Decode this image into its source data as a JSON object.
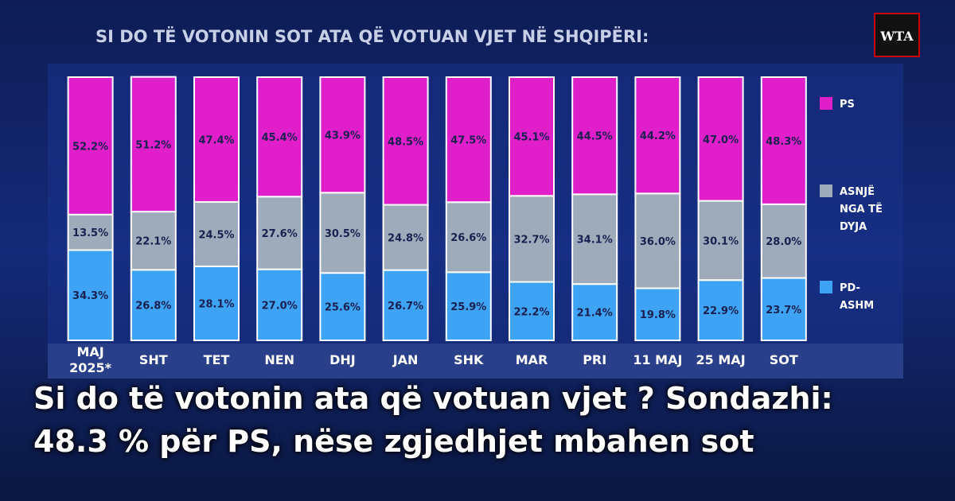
{
  "logo": "WTA",
  "headline": "Si do të votonin ata që votuan vjet ? Sondazhi: 48.3 % për PS, nëse zgjedhjet mbahen sot",
  "chart_data": {
    "type": "stacked-bar",
    "title": "SI DO TË VOTONIN SOT ATA QË VOTUAN VJET NË SHQIPËRI:",
    "categories": [
      "MAJ 2025*",
      "SHT",
      "TET",
      "NEN",
      "DHJ",
      "JAN",
      "SHK",
      "MAR",
      "PRI",
      "11 MAJ",
      "25 MAJ",
      "SOT"
    ],
    "ylim": [
      0,
      100
    ],
    "series": [
      {
        "name": "PD-ASHM",
        "color": "#3da3f2",
        "values": [
          34.3,
          26.8,
          28.1,
          27.0,
          25.6,
          26.7,
          25.9,
          22.2,
          21.4,
          19.8,
          22.9,
          23.7
        ],
        "value_labels": [
          "34.3%",
          "26.8%",
          "28.1%",
          "27.0%",
          "25.6%",
          "26.7%",
          "25.9%",
          "22.2%",
          "21.4%",
          "19.8%",
          "22.9%",
          "23.7%"
        ]
      },
      {
        "name": "ASNJË NGA TË DYJA",
        "color": "#9eabbb",
        "values": [
          13.5,
          22.1,
          24.5,
          27.6,
          30.5,
          24.8,
          26.6,
          32.7,
          34.1,
          36.0,
          30.1,
          28.0
        ],
        "value_labels": [
          "13.5%",
          "22.1%",
          "24.5%",
          "27.6%",
          "30.5%",
          "24.8%",
          "26.6%",
          "32.7%",
          "34.1%",
          "36.0%",
          "30.1%",
          "28.0%"
        ]
      },
      {
        "name": "PS",
        "color": "#e01fcb",
        "values": [
          52.2,
          51.2,
          47.4,
          45.4,
          43.9,
          48.5,
          47.5,
          45.1,
          44.5,
          44.2,
          47.0,
          48.3
        ],
        "value_labels": [
          "52.2%",
          "51.2%",
          "47.4%",
          "45.4%",
          "43.9%",
          "48.5%",
          "47.5%",
          "45.1%",
          "44.5%",
          "44.2%",
          "47.0%",
          "48.3%"
        ]
      }
    ]
  }
}
